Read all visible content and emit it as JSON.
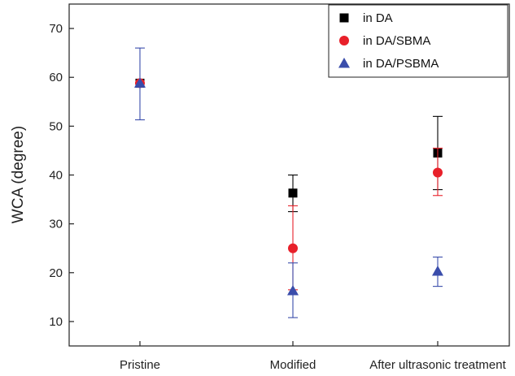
{
  "chart_data": {
    "type": "scatter",
    "title": "",
    "xlabel": "",
    "ylabel": "WCA (degree)",
    "categories": [
      "Pristine",
      "Modified",
      "After ultrasonic treatment"
    ],
    "ylim": [
      5,
      75
    ],
    "yticks": [
      10,
      20,
      30,
      40,
      50,
      60,
      70
    ],
    "grid": false,
    "legend_position": "top-right",
    "series": [
      {
        "name": "in DA",
        "marker": "square",
        "color": "#000000",
        "values": [
          58.8,
          36.3,
          44.5
        ],
        "error_low": [
          58.8,
          32.5,
          37.0
        ],
        "error_high": [
          58.8,
          40.0,
          52.0
        ]
      },
      {
        "name": "in DA/SBMA",
        "marker": "circle",
        "color": "#e8202a",
        "values": [
          58.8,
          25.0,
          40.5
        ],
        "error_low": [
          58.8,
          16.5,
          35.8
        ],
        "error_high": [
          58.8,
          33.7,
          45.5
        ]
      },
      {
        "name": "in DA/PSBMA",
        "marker": "triangle",
        "color": "#3a4dab",
        "values": [
          58.8,
          16.3,
          20.3
        ],
        "error_low": [
          51.3,
          10.8,
          17.2
        ],
        "error_high": [
          66.0,
          22.0,
          23.2
        ]
      }
    ]
  }
}
